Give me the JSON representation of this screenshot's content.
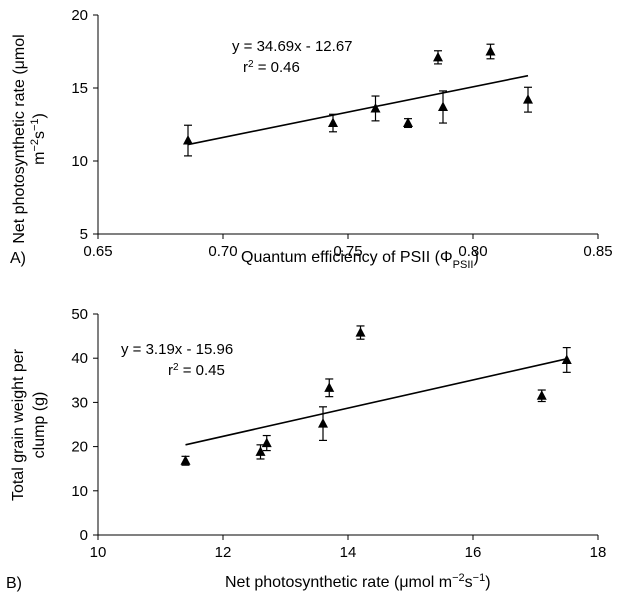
{
  "chart_data": [
    {
      "type": "scatter",
      "panel_label": "A)",
      "xlabel": "Quantum efficiency of PSII (Φ",
      "xlabel_sub": "PSII",
      "xlabel_close": ")",
      "ylabel_line1": "Net photosynthetic rate (μmol",
      "ylabel_line2": "m",
      "ylabel_line2_sup1": "−2",
      "ylabel_line2_mid": "s",
      "ylabel_line2_sup2": "−1",
      "ylabel_line2_end": ")",
      "xlim": [
        0.65,
        0.85
      ],
      "ylim": [
        5,
        20
      ],
      "x_ticks": [
        "0.65",
        "0.70",
        "0.75",
        "0.80",
        "0.85"
      ],
      "y_ticks": [
        "5",
        "10",
        "15",
        "20"
      ],
      "equation": "y = 34.69x - 12.67",
      "r2_prefix": "r",
      "r2_sup": "2",
      "r2_value": " = 0.46",
      "points": [
        {
          "x": 0.686,
          "y": 11.4,
          "err": 1.05
        },
        {
          "x": 0.744,
          "y": 12.6,
          "err": 0.6
        },
        {
          "x": 0.761,
          "y": 13.6,
          "err": 0.85
        },
        {
          "x": 0.774,
          "y": 12.6,
          "err": 0.3
        },
        {
          "x": 0.786,
          "y": 17.1,
          "err": 0.45
        },
        {
          "x": 0.788,
          "y": 13.7,
          "err": 1.1
        },
        {
          "x": 0.807,
          "y": 17.5,
          "err": 0.5
        },
        {
          "x": 0.822,
          "y": 14.2,
          "err": 0.85
        }
      ],
      "trendline": {
        "slope": 34.69,
        "intercept": -12.67,
        "x_range": [
          0.686,
          0.822
        ]
      }
    },
    {
      "type": "scatter",
      "panel_label": "B)",
      "xlabel": "Net photosynthetic rate (μmol m",
      "xlabel_sup1": "−2",
      "xlabel_mid": "s",
      "xlabel_sup2": "−1",
      "xlabel_close": ")",
      "ylabel_line1": "Total grain weight per",
      "ylabel_line2": "clump (g)",
      "xlim": [
        10,
        18
      ],
      "ylim": [
        0,
        50
      ],
      "x_ticks": [
        "10",
        "12",
        "14",
        "16",
        "18"
      ],
      "y_ticks": [
        "0",
        "10",
        "20",
        "30",
        "40",
        "50"
      ],
      "equation": "y = 3.19x - 15.96",
      "r2_prefix": "r",
      "r2_sup": "2",
      "r2_value": " = 0.45",
      "points": [
        {
          "x": 11.4,
          "y": 16.8,
          "err": 1.0
        },
        {
          "x": 12.6,
          "y": 18.8,
          "err": 1.6
        },
        {
          "x": 12.7,
          "y": 20.8,
          "err": 1.7
        },
        {
          "x": 13.6,
          "y": 25.2,
          "err": 3.8
        },
        {
          "x": 13.7,
          "y": 33.3,
          "err": 2.0
        },
        {
          "x": 14.2,
          "y": 45.8,
          "err": 1.5
        },
        {
          "x": 17.1,
          "y": 31.5,
          "err": 1.3
        },
        {
          "x": 17.5,
          "y": 39.6,
          "err": 2.8
        }
      ],
      "trendline": {
        "slope": 3.19,
        "intercept": -15.96,
        "x_range": [
          11.4,
          17.5
        ]
      }
    }
  ]
}
